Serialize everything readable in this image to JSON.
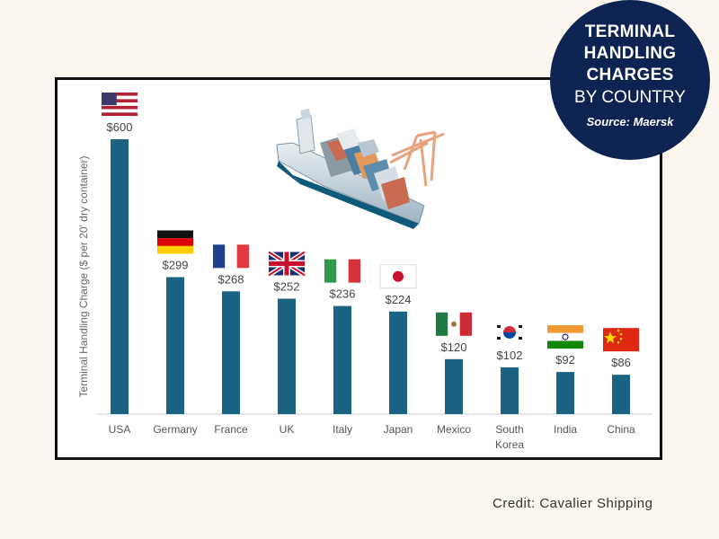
{
  "badge": {
    "line1": "TERMINAL",
    "line2": "HANDLING",
    "line3": "CHARGES",
    "line4": "BY COUNTRY",
    "source": "Source: Maersk"
  },
  "credit": "Credit: Cavalier Shipping",
  "colors": {
    "bar": "#1b6382",
    "badge": "#0d2453",
    "background": "#fbf6ee"
  },
  "chart_data": {
    "type": "bar",
    "title": "Terminal Handling Charges by Country",
    "ylabel": "Terminal Handling Charge ($ per 20' dry container)",
    "xlabel": "",
    "ylim": [
      0,
      600
    ],
    "categories": [
      "USA",
      "Germany",
      "France",
      "UK",
      "Italy",
      "Japan",
      "Mexico",
      "South Korea",
      "India",
      "China"
    ],
    "category_lines": [
      [
        "USA"
      ],
      [
        "Germany"
      ],
      [
        "France"
      ],
      [
        "UK"
      ],
      [
        "Italy"
      ],
      [
        "Japan"
      ],
      [
        "Mexico"
      ],
      [
        "South",
        "Korea"
      ],
      [
        "India"
      ],
      [
        "China"
      ]
    ],
    "values": [
      600,
      299,
      268,
      252,
      236,
      224,
      120,
      102,
      92,
      86
    ],
    "value_labels": [
      "$600",
      "$299",
      "$268",
      "$252",
      "$236",
      "$224",
      "$120",
      "$102",
      "$92",
      "$86"
    ],
    "flags": [
      "usa",
      "germany",
      "france",
      "uk",
      "italy",
      "japan",
      "mexico",
      "south-korea",
      "india",
      "china"
    ]
  }
}
